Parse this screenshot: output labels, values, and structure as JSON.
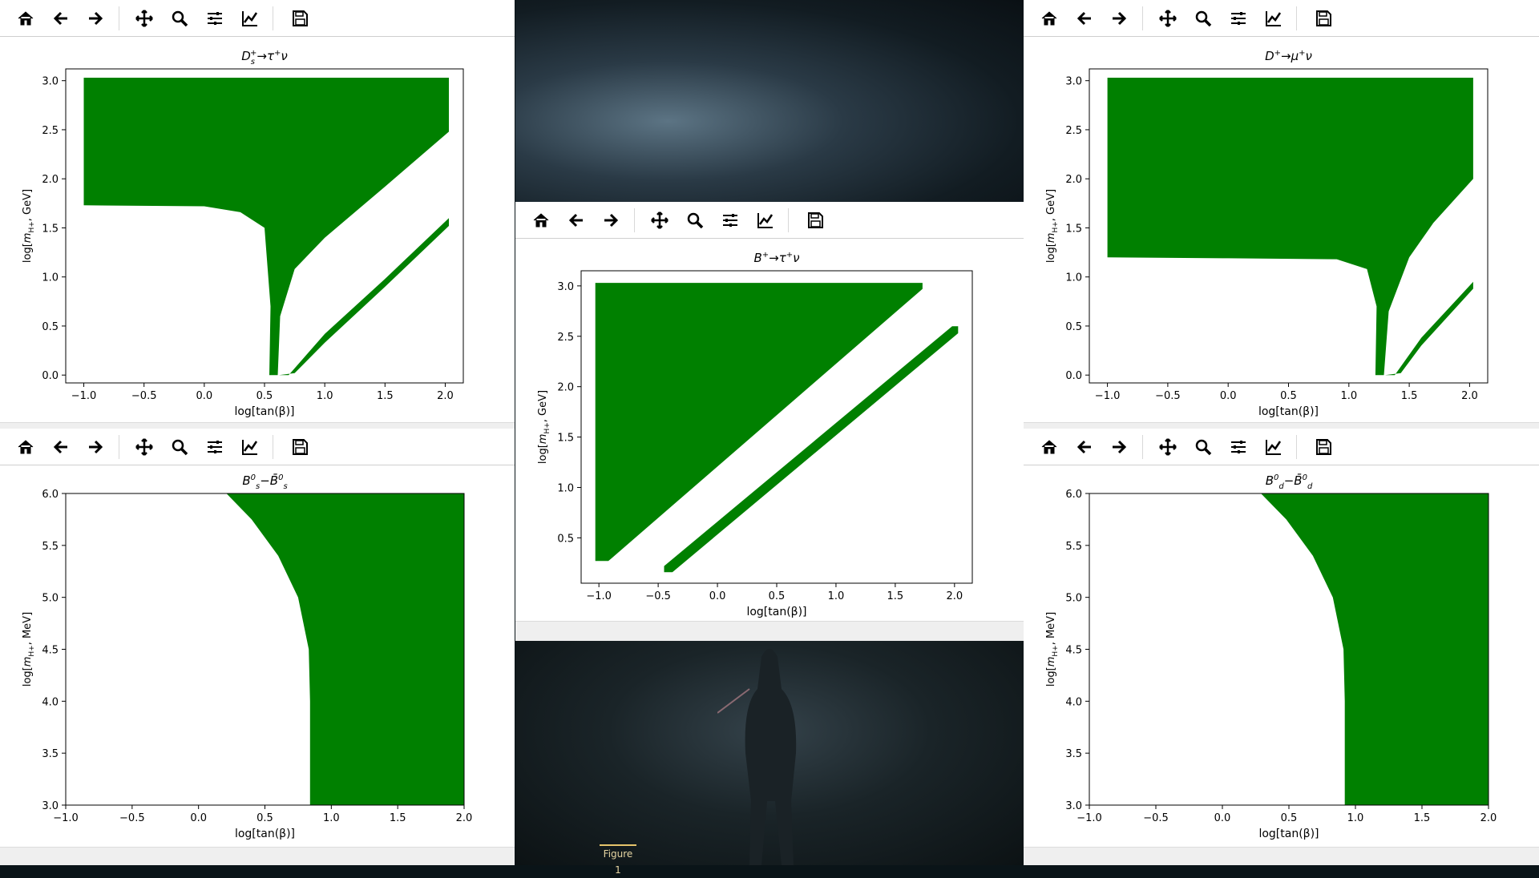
{
  "toolbar_icons": [
    "home-icon",
    "back-arrow-icon",
    "forward-arrow-icon",
    "pan-icon",
    "zoom-icon",
    "configure-subplots-icon",
    "edit-axes-icon",
    "save-icon"
  ],
  "taskbar": {
    "figure_label": "Figure 1"
  },
  "colors": {
    "fill": "#008000",
    "toolbar_border": "#cfcfcf"
  },
  "plots": [
    {
      "id": "ds-tau-nu",
      "title": "Ds+→τ+ν",
      "xlabel": "log[tan(β)]",
      "ylabel": "log[mH+, GeV]",
      "chart_data": {
        "type": "area",
        "title": "Ds+→τ+ν",
        "xlabel": "log[tan(β)]",
        "ylabel": "log[mH+, GeV]",
        "xlim": [
          -1.15,
          2.15
        ],
        "ylim": [
          -0.08,
          3.12
        ],
        "xticks": [
          "−1.0",
          "−0.5",
          "0.0",
          "0.5",
          "1.0",
          "1.5",
          "2.0"
        ],
        "yticks": [
          "0.0",
          "0.5",
          "1.0",
          "1.5",
          "2.0",
          "2.5",
          "3.0"
        ],
        "regions": [
          [
            [
              -1.0,
              3.03
            ],
            [
              2.03,
              3.03
            ],
            [
              2.03,
              2.48
            ],
            [
              1.5,
              1.92
            ],
            [
              1.0,
              1.4
            ],
            [
              0.75,
              1.08
            ],
            [
              0.63,
              0.6
            ],
            [
              0.61,
              0.0
            ],
            [
              0.54,
              0.0
            ],
            [
              0.55,
              0.7
            ],
            [
              0.5,
              1.5
            ],
            [
              0.3,
              1.66
            ],
            [
              0.0,
              1.72
            ],
            [
              -1.0,
              1.73
            ]
          ],
          [
            [
              0.62,
              0.0
            ],
            [
              0.7,
              0.0
            ],
            [
              1.0,
              0.42
            ],
            [
              1.5,
              0.98
            ],
            [
              2.03,
              1.6
            ],
            [
              2.03,
              1.52
            ],
            [
              1.5,
              0.9
            ],
            [
              1.0,
              0.33
            ],
            [
              0.75,
              0.02
            ]
          ]
        ]
      }
    },
    {
      "id": "b-tau-nu",
      "title": "B+→τ+ν",
      "xlabel": "log[tan(β)]",
      "ylabel": "log[mH+, GeV]",
      "chart_data": {
        "type": "area",
        "title": "B+→τ+ν",
        "xlabel": "log[tan(β)]",
        "ylabel": "log[mH+, GeV]",
        "xlim": [
          -1.15,
          2.15
        ],
        "ylim": [
          0.05,
          3.15
        ],
        "xticks": [
          "−1.0",
          "−0.5",
          "0.0",
          "0.5",
          "1.0",
          "1.5",
          "2.0"
        ],
        "yticks": [
          "0.5",
          "1.0",
          "1.5",
          "2.0",
          "2.5",
          "3.0"
        ],
        "regions": [
          [
            [
              -1.03,
              3.03
            ],
            [
              1.73,
              3.03
            ],
            [
              1.73,
              2.97
            ],
            [
              -0.92,
              0.27
            ],
            [
              -1.03,
              0.27
            ]
          ],
          [
            [
              -0.45,
              0.16
            ],
            [
              -0.38,
              0.16
            ],
            [
              2.03,
              2.53
            ],
            [
              2.03,
              2.6
            ],
            [
              1.98,
              2.6
            ],
            [
              -0.45,
              0.22
            ]
          ]
        ]
      }
    },
    {
      "id": "d-mu-nu",
      "title": "D+→μ+ν",
      "xlabel": "log[tan(β)]",
      "ylabel": "log[mH+, GeV]",
      "chart_data": {
        "type": "area",
        "title": "D+→μ+ν",
        "xlabel": "log[tan(β)]",
        "ylabel": "log[mH+, GeV]",
        "xlim": [
          -1.15,
          2.15
        ],
        "ylim": [
          -0.08,
          3.12
        ],
        "xticks": [
          "−1.0",
          "−0.5",
          "0.0",
          "0.5",
          "1.0",
          "1.5",
          "2.0"
        ],
        "yticks": [
          "0.0",
          "0.5",
          "1.0",
          "1.5",
          "2.0",
          "2.5",
          "3.0"
        ],
        "regions": [
          [
            [
              -1.0,
              3.03
            ],
            [
              2.03,
              3.03
            ],
            [
              2.03,
              2.0
            ],
            [
              1.7,
              1.55
            ],
            [
              1.5,
              1.2
            ],
            [
              1.33,
              0.65
            ],
            [
              1.29,
              0.0
            ],
            [
              1.22,
              0.0
            ],
            [
              1.23,
              0.7
            ],
            [
              1.15,
              1.08
            ],
            [
              0.9,
              1.18
            ],
            [
              0.0,
              1.19
            ],
            [
              -1.0,
              1.2
            ]
          ],
          [
            [
              1.3,
              0.0
            ],
            [
              1.38,
              0.0
            ],
            [
              1.6,
              0.38
            ],
            [
              2.03,
              0.95
            ],
            [
              2.03,
              0.88
            ],
            [
              1.6,
              0.3
            ],
            [
              1.43,
              0.02
            ]
          ]
        ]
      }
    },
    {
      "id": "bs-mixing",
      "title": "B0s−B̄0s",
      "xlabel": "log[tan(β)]",
      "ylabel": "log[mH+, MeV]",
      "chart_data": {
        "type": "area",
        "title": "B0s−B̄0s",
        "xlabel": "log[tan(β)]",
        "ylabel": "log[mH+, MeV]",
        "xlim": [
          -1.0,
          2.0
        ],
        "ylim": [
          3.0,
          6.0
        ],
        "xticks": [
          "−1.0",
          "−0.5",
          "0.0",
          "0.5",
          "1.0",
          "1.5",
          "2.0"
        ],
        "yticks": [
          "3.0",
          "3.5",
          "4.0",
          "4.5",
          "5.0",
          "5.5",
          "6.0"
        ],
        "regions": [
          [
            [
              0.21,
              6.0
            ],
            [
              2.0,
              6.0
            ],
            [
              2.0,
              3.0
            ],
            [
              0.84,
              3.0
            ],
            [
              0.84,
              4.0
            ],
            [
              0.83,
              4.5
            ],
            [
              0.75,
              5.0
            ],
            [
              0.6,
              5.4
            ],
            [
              0.4,
              5.75
            ]
          ]
        ]
      }
    },
    {
      "id": "bd-mixing",
      "title": "B0d−B̄0d",
      "xlabel": "log[tan(β)]",
      "ylabel": "log[mH+, MeV]",
      "chart_data": {
        "type": "area",
        "title": "B0d−B̄0d",
        "xlabel": "log[tan(β)]",
        "ylabel": "log[mH+, MeV]",
        "xlim": [
          -1.0,
          2.0
        ],
        "ylim": [
          3.0,
          6.0
        ],
        "xticks": [
          "−1.0",
          "−0.5",
          "0.0",
          "0.5",
          "1.0",
          "1.5",
          "2.0"
        ],
        "yticks": [
          "3.0",
          "3.5",
          "4.0",
          "4.5",
          "5.0",
          "5.5",
          "6.0"
        ],
        "regions": [
          [
            [
              0.29,
              6.0
            ],
            [
              2.0,
              6.0
            ],
            [
              2.0,
              3.0
            ],
            [
              0.92,
              3.0
            ],
            [
              0.92,
              4.0
            ],
            [
              0.91,
              4.5
            ],
            [
              0.83,
              5.0
            ],
            [
              0.68,
              5.4
            ],
            [
              0.48,
              5.75
            ]
          ]
        ]
      }
    }
  ]
}
